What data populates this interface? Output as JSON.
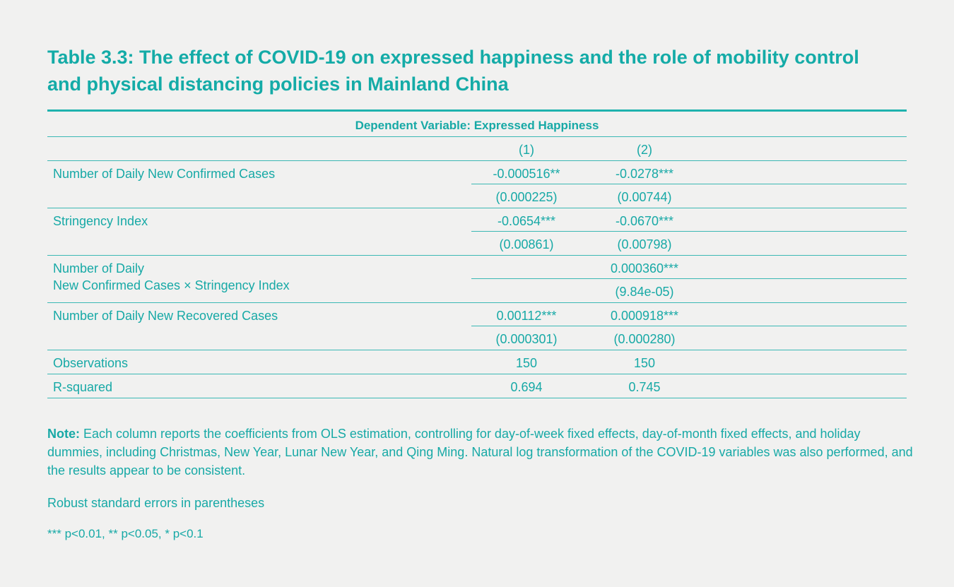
{
  "title": "Table 3.3: The effect of COVID-19 on expressed happiness and the role of mobility control and physical distancing policies in Mainland China",
  "table": {
    "header": "Dependent Variable: Expressed Happiness",
    "columns": [
      "(1)",
      "(2)"
    ],
    "rows": [
      {
        "label": "Number of Daily New Confirmed Cases",
        "c1": "-0.000516**",
        "c2": "-0.0278***",
        "se1": "(0.000225)",
        "se2": "(0.00744)"
      },
      {
        "label": "Stringency Index",
        "c1": "-0.0654***",
        "c2": "-0.0670***",
        "se1": "(0.00861)",
        "se2": "(0.00798)"
      },
      {
        "label": "Number of Daily",
        "label2": "New Confirmed Cases × Stringency Index",
        "c1": "",
        "c2": "0.000360***",
        "se1": "",
        "se2": "(9.84e-05)"
      },
      {
        "label": "Number of Daily New Recovered Cases",
        "c1": "0.00112***",
        "c2": "0.000918***",
        "se1": "(0.000301)",
        "se2": "(0.000280)"
      }
    ],
    "observations": {
      "label": "Observations",
      "c1": "150",
      "c2": "150"
    },
    "rsquared": {
      "label": "R-squared",
      "c1": "0.694",
      "c2": "0.745"
    }
  },
  "note": {
    "label": "Note:",
    "text": " Each column reports the coefficients from OLS estimation, controlling for day-of-week fixed effects, day-of-month fixed effects, and holiday dummies, including Christmas, New Year, Lunar New Year, and Qing Ming. Natural log transformation of the COVID-19 variables was also performed, and the results appear to be consistent."
  },
  "robust": "Robust standard errors in parentheses",
  "significance": "*** p<0.01, ** p<0.05, * p<0.1"
}
